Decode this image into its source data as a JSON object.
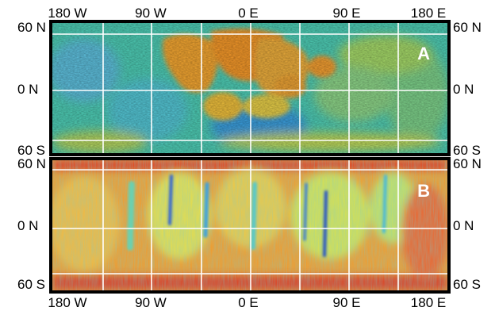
{
  "longitude_labels": [
    "180 W",
    "90 W",
    "0 E",
    "90 E",
    "180 E"
  ],
  "panels": [
    {
      "label": "A",
      "lat_top": "60 N",
      "lat_mid": "0 N",
      "lat_bottom": "60 S"
    },
    {
      "label": "B",
      "lat_top": "60 N",
      "lat_mid": "0 N",
      "lat_bottom": "60 S"
    }
  ],
  "colors": {
    "border": "#000000",
    "grid": "#ffffff",
    "panel_label": "#ffffff"
  },
  "colormap": "jet"
}
